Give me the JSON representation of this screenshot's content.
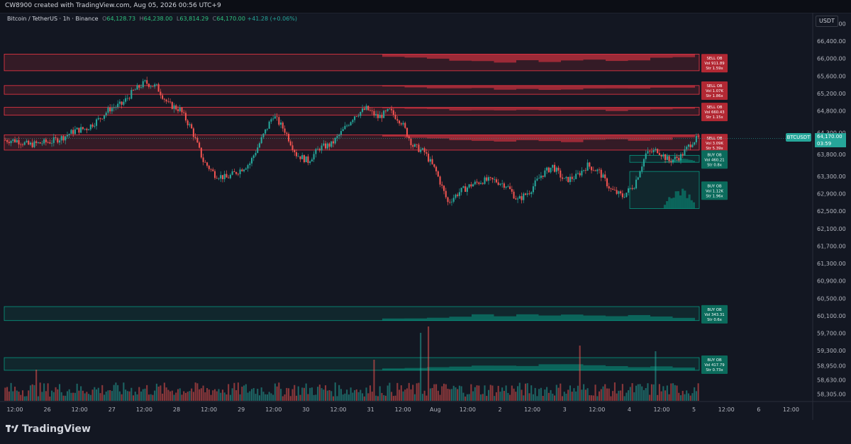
{
  "header": {
    "credit": "CW8900 created with TradingView.com, Aug 05, 2026 00:56 UTC+9"
  },
  "legend": {
    "symbol": "Bitcoin / TetherUS · 1h · Binance",
    "o_label": "O",
    "o": "64,128.73",
    "h_label": "H",
    "h": "64,238.00",
    "l_label": "L",
    "l": "63,814.29",
    "c_label": "C",
    "c": "64,170.00",
    "change": "+41.28 (+0.06%)"
  },
  "price_axis": {
    "unit": "USDT",
    "labels": [
      "66,800.00",
      "66,400.00",
      "66,000.00",
      "65,600.00",
      "65,200.00",
      "64,800.00",
      "64,300.00",
      "63,800.00",
      "63,300.00",
      "62,900.00",
      "62,500.00",
      "62,100.00",
      "61,700.00",
      "61,300.00",
      "60,900.00",
      "60,500.00",
      "60,100.00",
      "59,700.00",
      "59,300.00",
      "58,950.00",
      "58,630.00",
      "58,305.00"
    ],
    "symbol_tag": "BTCUSDT",
    "last_price": "64,170.00",
    "countdown": "03:59"
  },
  "time_axis": {
    "labels": [
      "12:00",
      "26",
      "12:00",
      "27",
      "12:00",
      "28",
      "12:00",
      "29",
      "12:00",
      "30",
      "12:00",
      "31",
      "12:00",
      "Aug",
      "12:00",
      "2",
      "12:00",
      "3",
      "12:00",
      "4",
      "12:00",
      "5",
      "12:00",
      "6",
      "12:00"
    ]
  },
  "order_blocks": [
    {
      "type": "SELL OB",
      "vol": "Vol 911.89",
      "str": "Str 1.59x",
      "top": 66100,
      "bottom": 65720
    },
    {
      "type": "SELL OB",
      "vol": "Vol 1.07K",
      "str": "Str 1.86x",
      "top": 65380,
      "bottom": 65180
    },
    {
      "type": "SELL OB",
      "vol": "Vol 660.43",
      "str": "Str 1.15x",
      "top": 64880,
      "bottom": 64700
    },
    {
      "type": "SELL OB",
      "vol": "Vol 3.09K",
      "str": "Str 5.39x",
      "top": 64250,
      "bottom": 63900
    },
    {
      "type": "BUY OB",
      "vol": "Vol 460.21",
      "str": "Str 0.8x",
      "top": 63780,
      "bottom": 63620
    },
    {
      "type": "BUY OB",
      "vol": "Vol 1.12K",
      "str": "Str 1.96x",
      "top": 63410,
      "bottom": 62560
    },
    {
      "type": "BUY OB",
      "vol": "Vol 343.31",
      "str": "Str 0.6x",
      "top": 60310,
      "bottom": 59990
    },
    {
      "type": "BUY OB",
      "vol": "Vol 417.79",
      "str": "Str 0.73x",
      "top": 59140,
      "bottom": 58850
    }
  ],
  "chart_data": {
    "type": "candlestick",
    "symbol": "Bitcoin / TetherUS",
    "timeframe": "1h",
    "exchange": "Binance",
    "ylim": [
      58150,
      67050
    ],
    "close_path": [
      [
        0,
        64130
      ],
      [
        6,
        64120
      ],
      [
        12,
        64020
      ],
      [
        18,
        64060
      ],
      [
        24,
        64100
      ],
      [
        30,
        64200
      ],
      [
        36,
        64350
      ],
      [
        42,
        64400
      ],
      [
        48,
        64600
      ],
      [
        54,
        64850
      ],
      [
        60,
        64950
      ],
      [
        66,
        65250
      ],
      [
        72,
        65450
      ],
      [
        78,
        65350
      ],
      [
        84,
        64950
      ],
      [
        90,
        64830
      ],
      [
        96,
        64380
      ],
      [
        102,
        63650
      ],
      [
        108,
        63340
      ],
      [
        114,
        63260
      ],
      [
        120,
        63420
      ],
      [
        126,
        63600
      ],
      [
        132,
        64150
      ],
      [
        138,
        64700
      ],
      [
        144,
        64350
      ],
      [
        150,
        63800
      ],
      [
        156,
        63650
      ],
      [
        162,
        63950
      ],
      [
        168,
        64030
      ],
      [
        174,
        64350
      ],
      [
        180,
        64700
      ],
      [
        186,
        64850
      ],
      [
        192,
        64650
      ],
      [
        198,
        64800
      ],
      [
        204,
        64550
      ],
      [
        210,
        64000
      ],
      [
        216,
        63850
      ],
      [
        222,
        63400
      ],
      [
        228,
        62700
      ],
      [
        234,
        62940
      ],
      [
        240,
        63100
      ],
      [
        246,
        63200
      ],
      [
        252,
        63200
      ],
      [
        258,
        63100
      ],
      [
        264,
        62750
      ],
      [
        270,
        62950
      ],
      [
        276,
        63320
      ],
      [
        282,
        63530
      ],
      [
        288,
        63200
      ],
      [
        294,
        63290
      ],
      [
        300,
        63550
      ],
      [
        306,
        63400
      ],
      [
        312,
        62990
      ],
      [
        318,
        62840
      ],
      [
        324,
        63100
      ],
      [
        330,
        63810
      ],
      [
        336,
        63900
      ],
      [
        342,
        63650
      ],
      [
        348,
        63760
      ],
      [
        354,
        64100
      ],
      [
        357,
        64170
      ]
    ],
    "volume_note": "Volume histogram at bottom of pane",
    "colors": {
      "up": "#26a69a",
      "down": "#ef5350",
      "sell_ob": "#f23645",
      "buy_ob": "#089981"
    }
  }
}
